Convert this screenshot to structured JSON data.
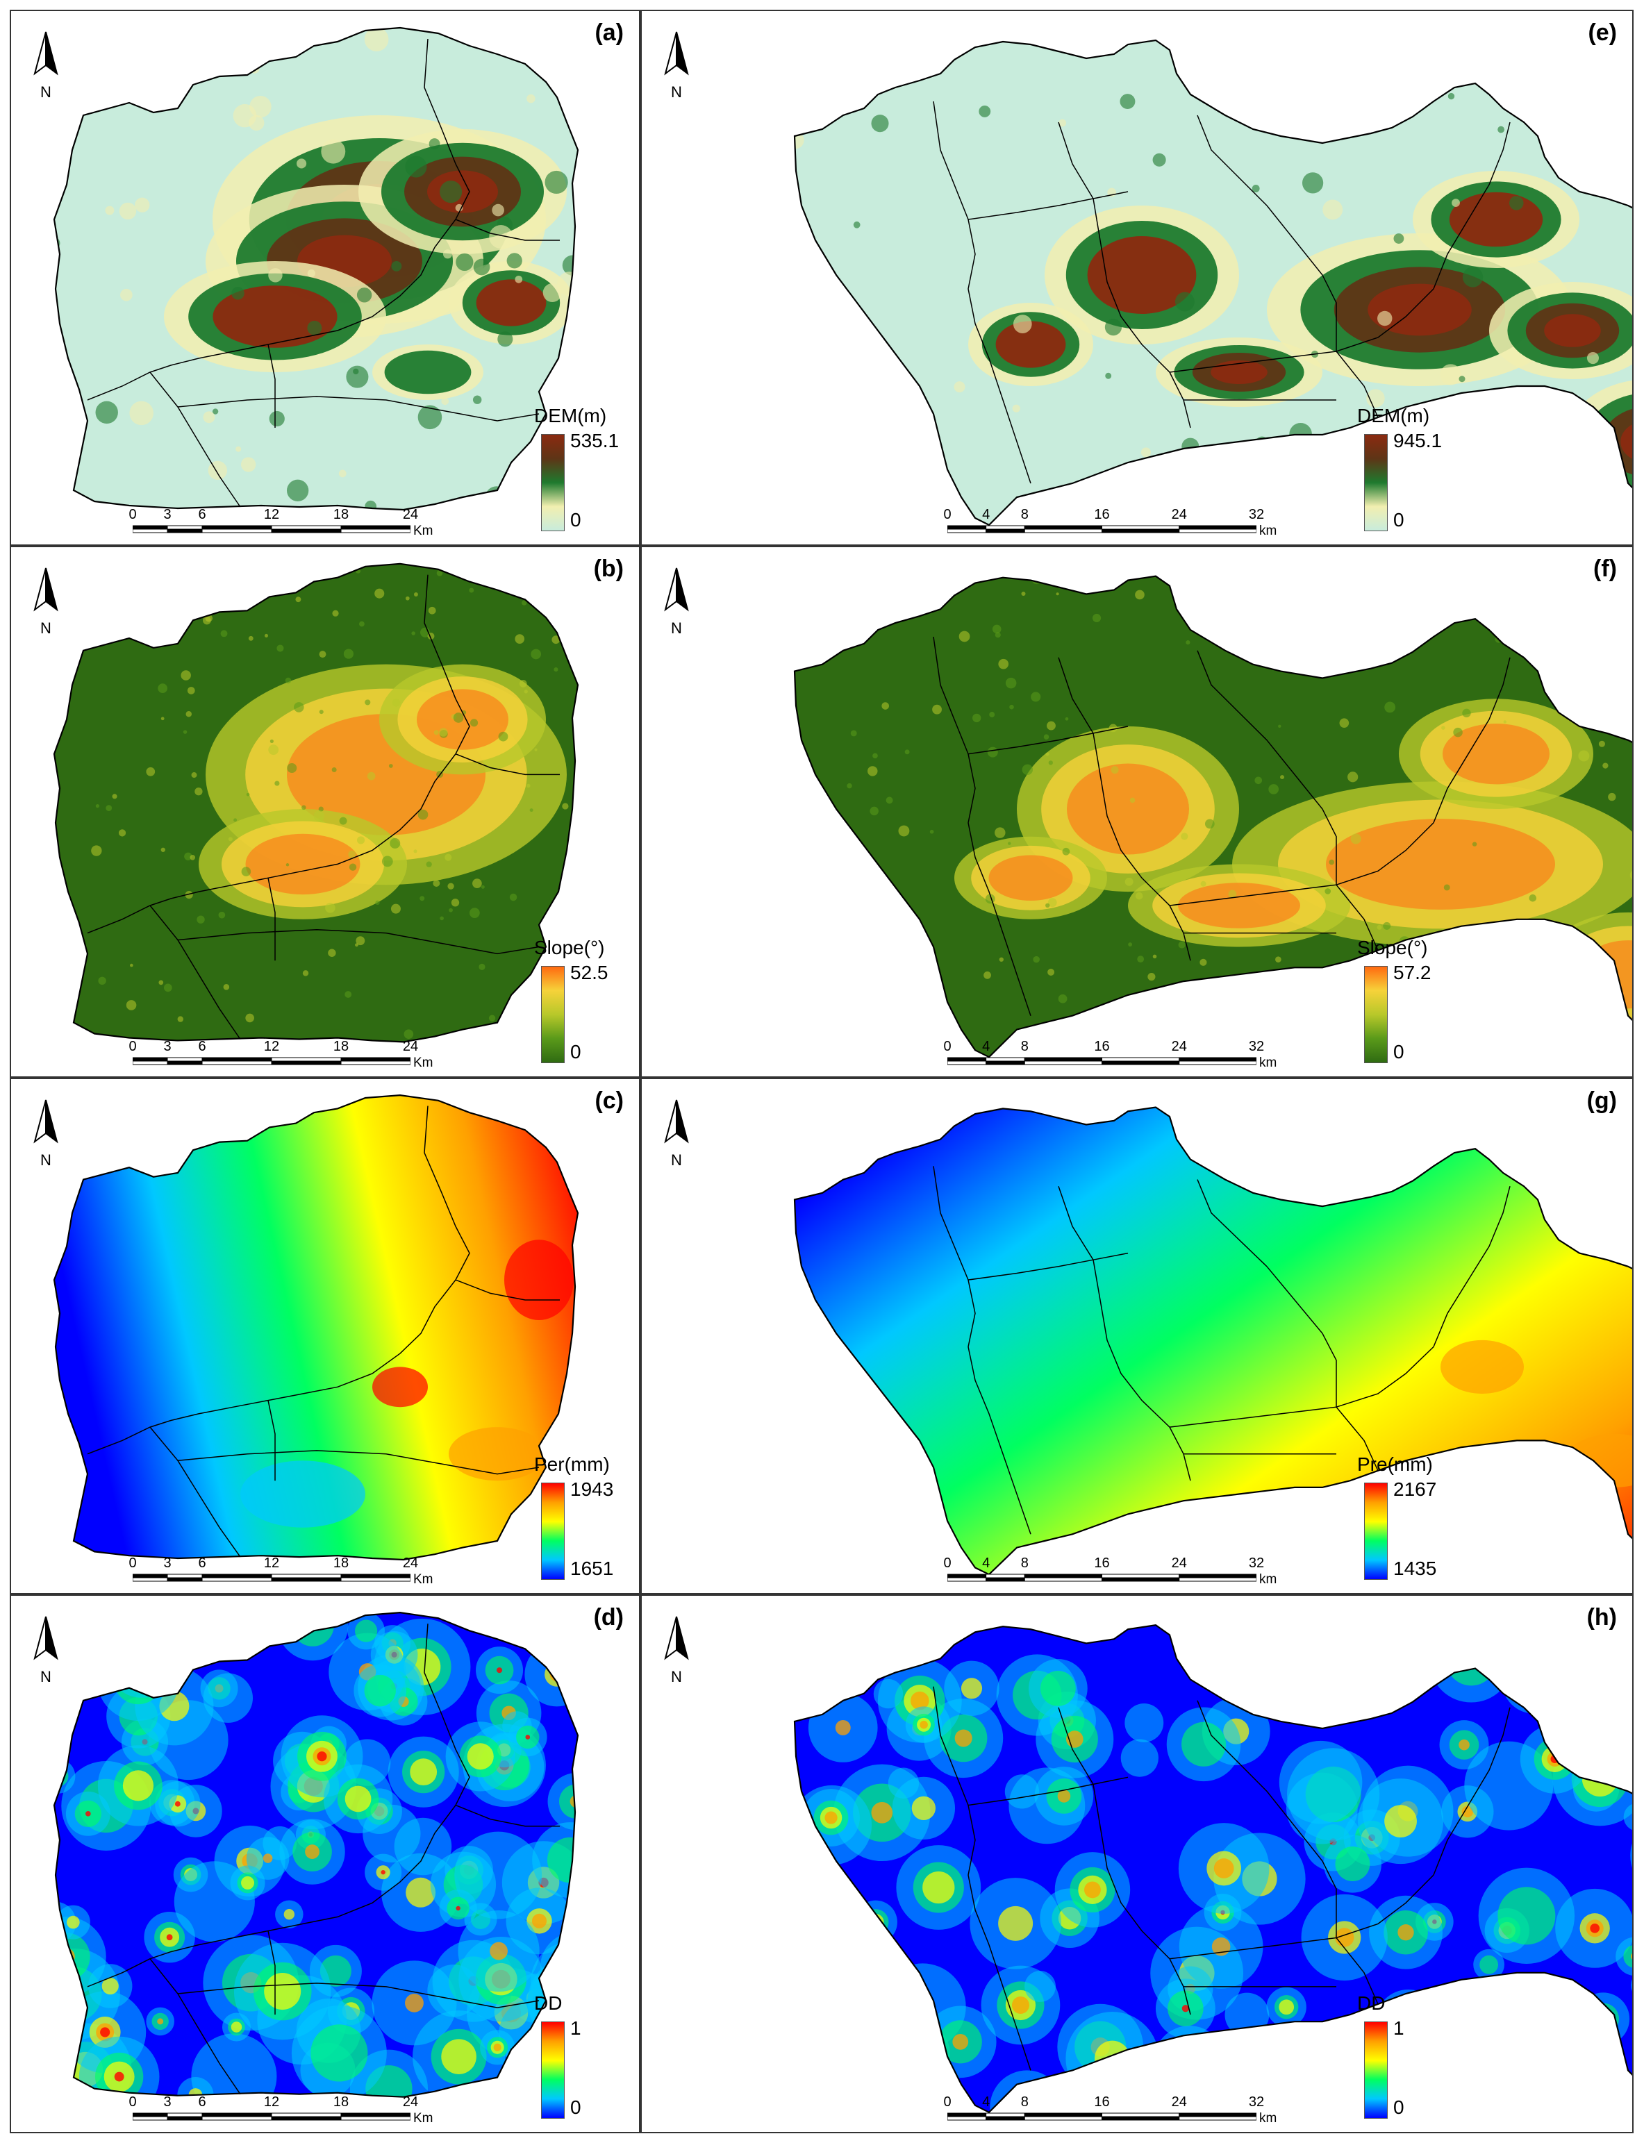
{
  "panels": [
    {
      "id": "a",
      "label": "(a)",
      "legend": {
        "title": "DEM(m)",
        "max": "535.1",
        "min": "0",
        "ramp": "dem"
      },
      "scale": {
        "ticks": [
          "0",
          "3",
          "6",
          "12",
          "18",
          "24"
        ],
        "unit": "Km"
      }
    },
    {
      "id": "e",
      "label": "(e)",
      "legend": {
        "title": "DEM(m)",
        "max": "945.1",
        "min": "0",
        "ramp": "dem"
      },
      "scale": {
        "ticks": [
          "0",
          "4",
          "8",
          "16",
          "24",
          "32"
        ],
        "unit": "km"
      }
    },
    {
      "id": "b",
      "label": "(b)",
      "legend": {
        "title": "Slope(°)",
        "max": "52.5",
        "min": "0",
        "ramp": "slope"
      },
      "scale": {
        "ticks": [
          "0",
          "3",
          "6",
          "12",
          "18",
          "24"
        ],
        "unit": "Km"
      }
    },
    {
      "id": "f",
      "label": "(f)",
      "legend": {
        "title": "Slope(°)",
        "max": "57.2",
        "min": "0",
        "ramp": "slope"
      },
      "scale": {
        "ticks": [
          "0",
          "4",
          "8",
          "16",
          "24",
          "32"
        ],
        "unit": "km"
      }
    },
    {
      "id": "c",
      "label": "(c)",
      "legend": {
        "title": "Per(mm)",
        "max": "1943",
        "min": "1651",
        "ramp": "spectral"
      },
      "scale": {
        "ticks": [
          "0",
          "3",
          "6",
          "12",
          "18",
          "24"
        ],
        "unit": "Km"
      }
    },
    {
      "id": "g",
      "label": "(g)",
      "legend": {
        "title": "Pre(mm)",
        "max": "2167",
        "min": "1435",
        "ramp": "spectral"
      },
      "scale": {
        "ticks": [
          "0",
          "4",
          "8",
          "16",
          "24",
          "32"
        ],
        "unit": "km"
      }
    },
    {
      "id": "d",
      "label": "(d)",
      "legend": {
        "title": "DD",
        "max": "1",
        "min": "0",
        "ramp": "spectral"
      },
      "scale": {
        "ticks": [
          "0",
          "3",
          "6",
          "12",
          "18",
          "24"
        ],
        "unit": "Km"
      }
    },
    {
      "id": "h",
      "label": "(h)",
      "legend": {
        "title": "DD",
        "max": "1",
        "min": "0",
        "ramp": "spectral"
      },
      "scale": {
        "ticks": [
          "0",
          "4",
          "8",
          "16",
          "24",
          "32"
        ],
        "unit": "km"
      }
    }
  ],
  "north_label": "N",
  "colors": {
    "dem": [
      "#8b2a10",
      "#5e3516",
      "#1e7a2e",
      "#f2efb0",
      "#c8ecdc"
    ],
    "slope": [
      "#ff6a10",
      "#f6d23a",
      "#b8c82a",
      "#5a9a1a",
      "#2f6b12"
    ],
    "spectral": [
      "#ff0000",
      "#ffa000",
      "#ffff00",
      "#00ff60",
      "#00c8ff",
      "#0000ff"
    ]
  }
}
